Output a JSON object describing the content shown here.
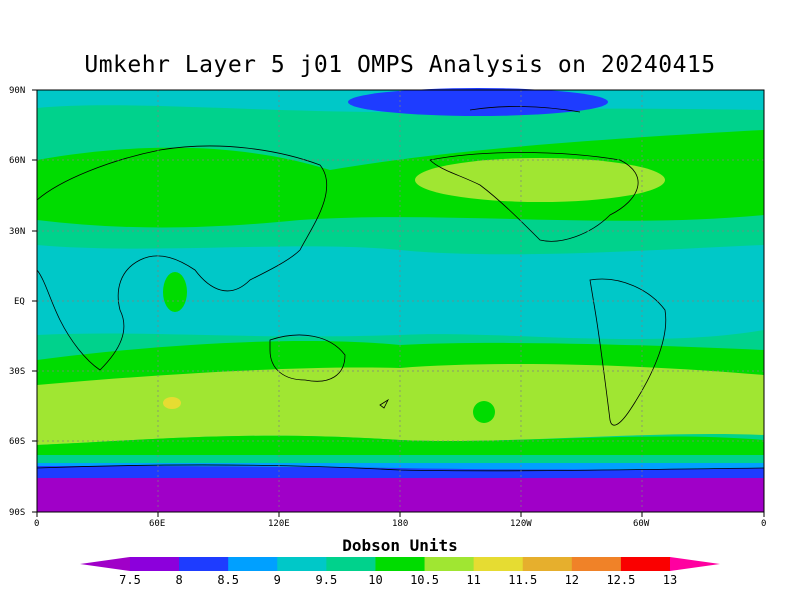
{
  "title": "Umkehr Layer 5 j01 OMPS Analysis on 20240415",
  "colorbar": {
    "title": "Dobson Units",
    "labels": [
      "7.5",
      "8",
      "8.5",
      "9",
      "9.5",
      "10",
      "10.5",
      "11",
      "11.5",
      "12",
      "12.5",
      "13"
    ],
    "colors": [
      "#a000c8",
      "#8c00dc",
      "#1e3cff",
      "#00a0ff",
      "#00c8c8",
      "#00d28c",
      "#00dc00",
      "#a0e632",
      "#e6dc32",
      "#e6af2d",
      "#f08228",
      "#fa0000",
      "#ff00a0"
    ]
  },
  "axes": {
    "lat_labels": [
      "90N",
      "60N",
      "30N",
      "EQ",
      "30S",
      "60S",
      "90S"
    ],
    "lon_labels": [
      "0",
      "60E",
      "120E",
      "180",
      "120W",
      "60W",
      "0"
    ]
  },
  "chart_data": {
    "type": "heatmap",
    "title": "Umkehr Layer 5 j01 OMPS Analysis on 20240415",
    "units": "Dobson Units",
    "latitude_bands": [
      {
        "lat": "90N-80N",
        "value": 9.5
      },
      {
        "lat": "80N-60N",
        "value": 10.0
      },
      {
        "lat": "60N-45N",
        "value": 10.5
      },
      {
        "lat": "45N-30N",
        "value": 10.0
      },
      {
        "lat": "30N-10S",
        "value": 9.5
      },
      {
        "lat": "10S-20S",
        "value": 10.0
      },
      {
        "lat": "20S-30S",
        "value": 10.5
      },
      {
        "lat": "30S-55S",
        "value": 11.0
      },
      {
        "lat": "55S-60S",
        "value": 10.5
      },
      {
        "lat": "60S-65S",
        "value": 10.0
      },
      {
        "lat": "65S-70S",
        "value": 9.0
      },
      {
        "lat": "70S-90S",
        "value": 7.5
      }
    ],
    "xlim": [
      "0",
      "0"
    ],
    "ylim": [
      "90S",
      "90N"
    ],
    "grid": true
  }
}
